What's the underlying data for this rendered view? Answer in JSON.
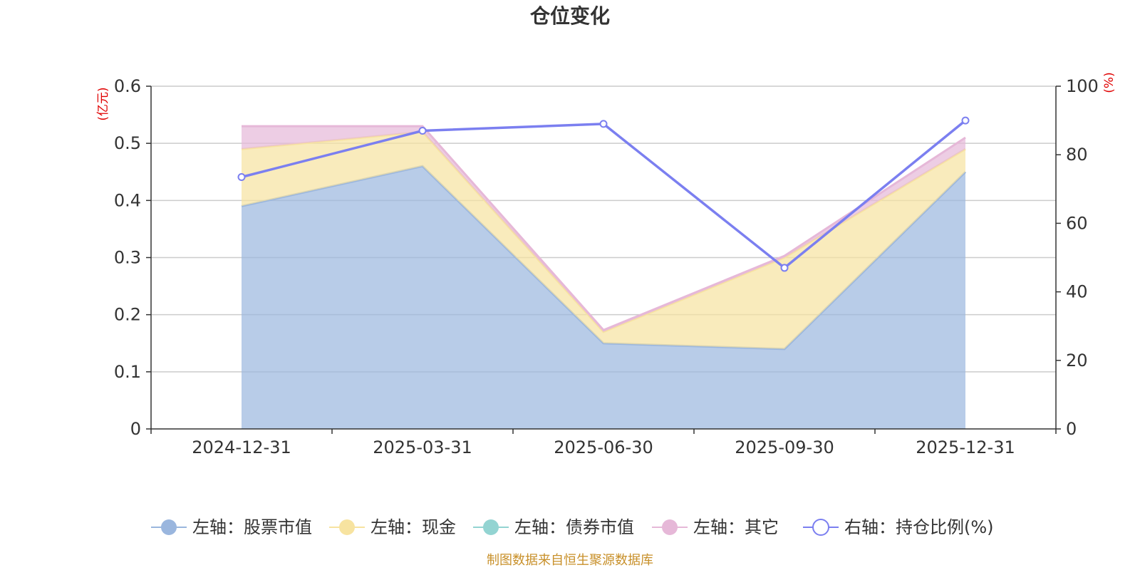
{
  "chart_data": {
    "type": "area",
    "title": "仓位变化",
    "categories": [
      "2024-12-31",
      "2025-03-31",
      "2025-06-30",
      "2025-09-30",
      "2025-12-31"
    ],
    "left_axis": {
      "unit": "(亿元)",
      "ylim": [
        0,
        0.6
      ],
      "ticks": [
        0,
        0.1,
        0.2,
        0.3,
        0.4,
        0.5,
        0.6
      ]
    },
    "right_axis": {
      "unit": "(%)",
      "ylim": [
        0,
        100
      ],
      "ticks": [
        0,
        20,
        40,
        60,
        80,
        100
      ]
    },
    "series": [
      {
        "name": "左轴：股票市值",
        "axis": "left",
        "stack": true,
        "color": "#9ab6de",
        "values": [
          0.39,
          0.46,
          0.15,
          0.14,
          0.45
        ]
      },
      {
        "name": "左轴：现金",
        "axis": "left",
        "stack": true,
        "color": "#f7e3a0",
        "values": [
          0.1,
          0.06,
          0.02,
          0.16,
          0.04
        ]
      },
      {
        "name": "左轴：债券市值",
        "axis": "left",
        "stack": true,
        "color": "#93d4d2",
        "values": [
          0,
          0,
          0,
          0,
          0
        ]
      },
      {
        "name": "左轴：其它",
        "axis": "left",
        "stack": true,
        "color": "#e6b8d8",
        "values": [
          0.04,
          0.01,
          0.003,
          0.003,
          0.02
        ]
      },
      {
        "name": "右轴：持仓比例(%)",
        "axis": "right",
        "type": "line",
        "color": "#7b7ff0",
        "values": [
          73.5,
          87,
          89,
          47,
          90
        ]
      }
    ],
    "legend_position": "bottom",
    "grid": true
  },
  "source": "制图数据来自恒生聚源数据库"
}
